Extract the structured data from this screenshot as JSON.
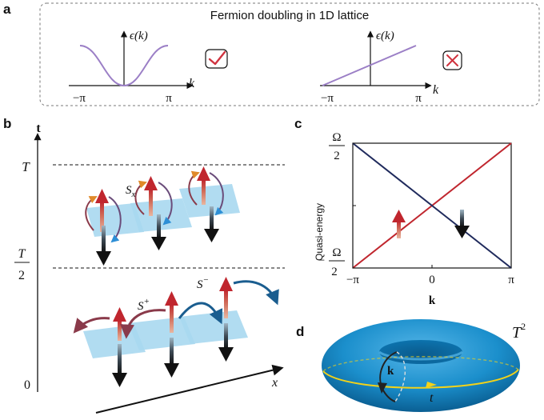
{
  "panels": {
    "a": {
      "label": "a",
      "title": "Fermion doubling in 1D lattice",
      "y_label": "ϵ(k)",
      "x_label": "k",
      "tick_left": "−π",
      "tick_right": "π",
      "left_mark": "check",
      "right_mark": "cross",
      "colors": {
        "curve": "#9b7fc6",
        "check": "#d0333f",
        "cross": "#d0333f"
      }
    },
    "b": {
      "label": "b",
      "time_axis": "t",
      "t_top": "T",
      "t_half_num": "T",
      "t_half_den": "2",
      "t_zero": "0",
      "x_label": "x",
      "op_sx": "S",
      "op_sx_sub": "x",
      "op_plus": "S",
      "op_plus_sup": "+",
      "op_minus": "S",
      "op_minus_sup": "−",
      "colors": {
        "plate": "#a9d8ef",
        "up": "#c0262e",
        "down": "#111111"
      }
    },
    "c": {
      "label": "c",
      "y_label": "Quasi-energy",
      "x_label": "k",
      "omega": "Ω",
      "two": "2",
      "minus": "−",
      "tick_left": "−π",
      "tick_mid": "0",
      "tick_right": "π",
      "colors": {
        "up_branch": "#c0262e",
        "down_branch": "#1f2a5c"
      }
    },
    "d": {
      "label": "d",
      "torus_label": "T",
      "torus_sup": "2",
      "k_label": "k",
      "t_label": "t",
      "colors": {
        "torus": "#1b8fcc",
        "loop": "#f2d21a"
      }
    }
  },
  "chart_data": {
    "type": "line",
    "title": "",
    "xlabel": "k",
    "ylabel": "Quasi-energy",
    "x": [
      -3.1416,
      0,
      3.1416
    ],
    "xlim": [
      -3.1416,
      3.1416
    ],
    "ylim": [
      -0.5,
      0.5
    ],
    "y_unit": "Ω",
    "series": [
      {
        "values": [
          -0.5,
          0,
          0.5
        ],
        "color": "#c0262e"
      },
      {
        "values": [
          0.5,
          0,
          -0.5
        ],
        "color": "#1f2a5c"
      }
    ]
  }
}
